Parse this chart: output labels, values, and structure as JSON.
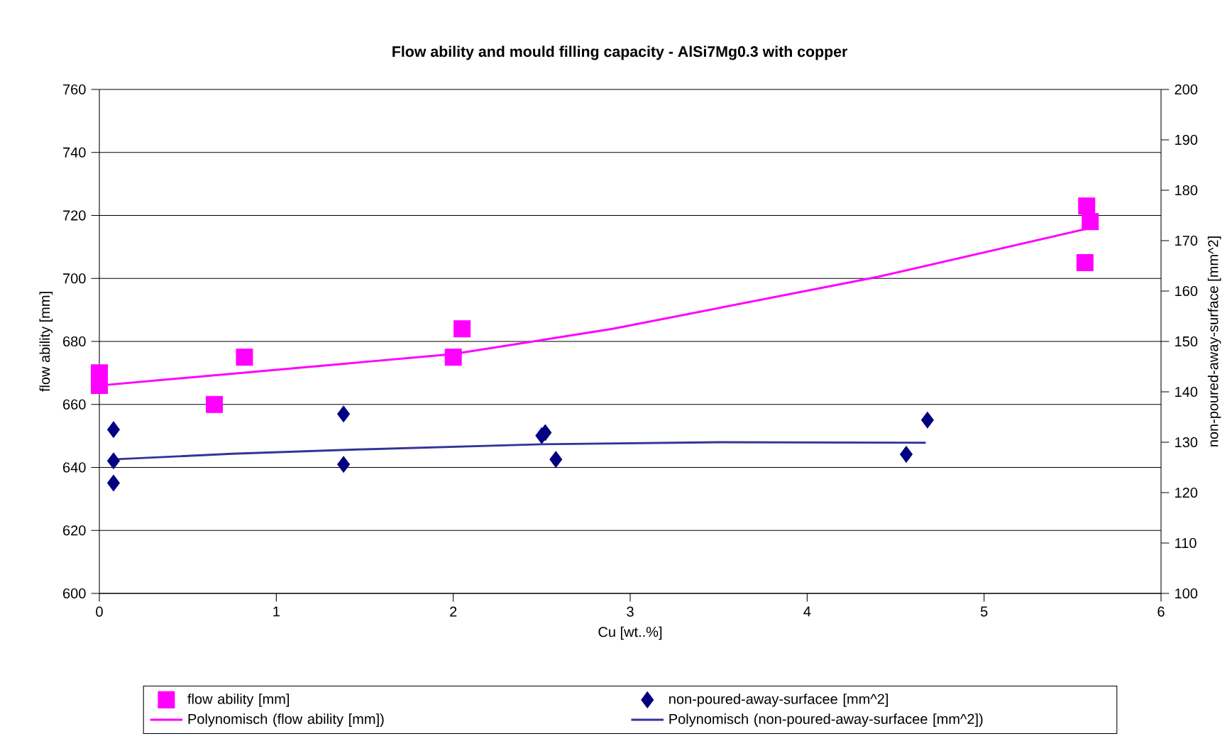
{
  "chart_data": {
    "type": "scatter",
    "title": "Flow ability and mould filling capacity - AlSi7Mg0.3 with copper",
    "xlabel": "Cu [wt..%]",
    "ylabel": "flow ability  [mm]",
    "y2label": "non-poured-away-surface [mm^2]",
    "xlim": [
      0,
      6
    ],
    "xticks": [
      0,
      1,
      2,
      3,
      4,
      5,
      6
    ],
    "ylim": [
      600,
      760
    ],
    "yticks": [
      600,
      620,
      640,
      660,
      680,
      700,
      720,
      740,
      760
    ],
    "y2lim": [
      100,
      200
    ],
    "y2ticks": [
      100,
      110,
      120,
      130,
      140,
      150,
      160,
      170,
      180,
      190,
      200
    ],
    "grid": "y",
    "legend": "bottom",
    "series": [
      {
        "name": "flow ability [mm]",
        "marker": "square",
        "color": "#ff00ff",
        "x": [
          0,
          0,
          0.65,
          0.82,
          2.0,
          2.05,
          5.57,
          5.58,
          5.6
        ],
        "values": [
          670,
          666,
          660,
          675,
          675,
          684,
          705,
          723,
          718
        ]
      },
      {
        "name": "non-poured-away-surfacee [mm^2]",
        "marker": "diamond",
        "axis": "y2",
        "color": "#000080",
        "x": [
          0.08,
          0.08,
          0.08,
          1.38,
          1.38,
          2.5,
          2.52,
          2.58,
          4.56,
          4.68
        ],
        "values": [
          132.5,
          126.3,
          121.9,
          135.6,
          125.6,
          131.3,
          131.9,
          126.6,
          127.6,
          134.4
        ]
      },
      {
        "name": "Polynomisch (flow ability [mm])",
        "type": "line",
        "marker": "none",
        "line_style": "solid",
        "color": "#ff00ff",
        "x": [
          0,
          1,
          2,
          2.9,
          4.4,
          5.6
        ],
        "values": [
          666,
          671,
          676,
          684,
          700.5,
          716
        ]
      },
      {
        "name": "Polynomisch (non-poured-away-surfacee [mm^2])",
        "type": "line",
        "marker": "none",
        "line_style": "solid",
        "axis": "y2",
        "color": "#333399",
        "x": [
          0.08,
          0.75,
          1.5,
          2.5,
          3.5,
          4.67
        ],
        "values": [
          126.6,
          127.7,
          128.6,
          129.6,
          130,
          129.9
        ]
      }
    ]
  }
}
